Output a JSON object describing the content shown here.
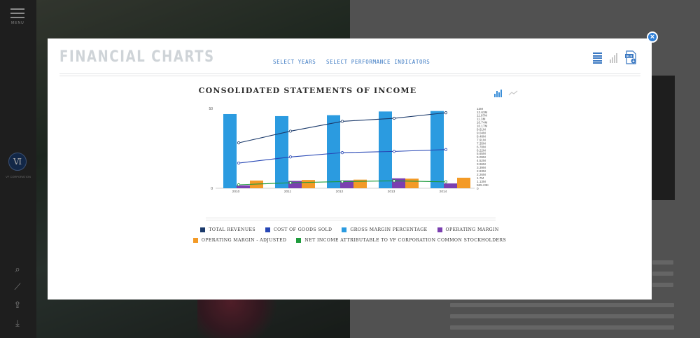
{
  "background": {
    "menu_label": "MENU",
    "logo_mark": "Ⅵ",
    "logo_sub": "VF CORPORATION"
  },
  "modal": {
    "title": "FINANCIAL CHARTS",
    "nav": {
      "select_years": "SELECT YEARS",
      "select_kpi": "SELECT PERFORMANCE INDICATORS"
    },
    "close_glyph": "×",
    "tools": [
      "list-view-icon",
      "chart-view-icon",
      "excel-download-icon"
    ]
  },
  "colors": {
    "total_revenues": "#1b3a6b",
    "cost_of_goods_sold": "#2747b5",
    "gross_margin_percentage": "#2b9be0",
    "operating_margin": "#7b3fb0",
    "operating_margin_adjusted": "#f39a26",
    "net_income": "#1e9b3c",
    "accent": "#3a78c2"
  },
  "chart_data": {
    "type": "bar",
    "title": "CONSOLIDATED STATEMENTS OF INCOME",
    "categories": [
      "2010",
      "2011",
      "2012",
      "2013",
      "2014"
    ],
    "left_axis": {
      "ticks": [
        "50",
        "0"
      ],
      "ylim": [
        0,
        50
      ]
    },
    "right_axis": {
      "ticks": [
        "13M",
        "12.63M",
        "11.87M",
        "11.3M",
        "10.74M",
        "10.17M",
        "9.61M",
        "9.04M",
        "8.48M",
        "7.91M",
        "7.35M",
        "6.78M",
        "6.22M",
        "5.65M",
        "5.09M",
        "4.52M",
        "3.96M",
        "3.39M",
        "2.83M",
        "2.26M",
        "1.7M",
        "1.13M",
        "565.23K",
        "0"
      ],
      "ylim": [
        0,
        13000000
      ]
    },
    "series": [
      {
        "name": "TOTAL REVENUES",
        "kind": "line",
        "axis": "right",
        "values": [
          7400000,
          9300000,
          10900000,
          11400000,
          12300000
        ]
      },
      {
        "name": "COST OF GOODS SOLD",
        "kind": "line",
        "axis": "right",
        "values": [
          4100000,
          5100000,
          5800000,
          6000000,
          6300000
        ]
      },
      {
        "name": "GROSS MARGIN PERCENTAGE",
        "kind": "bar",
        "axis": "left",
        "values": [
          46.5,
          45.2,
          45.8,
          48.1,
          48.4
        ]
      },
      {
        "name": "OPERATING MARGIN",
        "kind": "bar",
        "axis": "left",
        "values": [
          1.8,
          4.6,
          4.9,
          6.2,
          3.0
        ]
      },
      {
        "name": "OPERATING MARGIN - ADJUSTED",
        "kind": "bar",
        "axis": "left",
        "values": [
          4.8,
          5.2,
          5.4,
          6.0,
          6.6
        ]
      },
      {
        "name": "NET INCOME ATTRIBUTABLE TO VF CORPORATION COMMON STOCKHOLDERS",
        "kind": "line",
        "axis": "right",
        "values": [
          570000,
          890000,
          1090000,
          1210000,
          1050000
        ]
      }
    ],
    "legend_placement": "bottom",
    "grid": false
  }
}
